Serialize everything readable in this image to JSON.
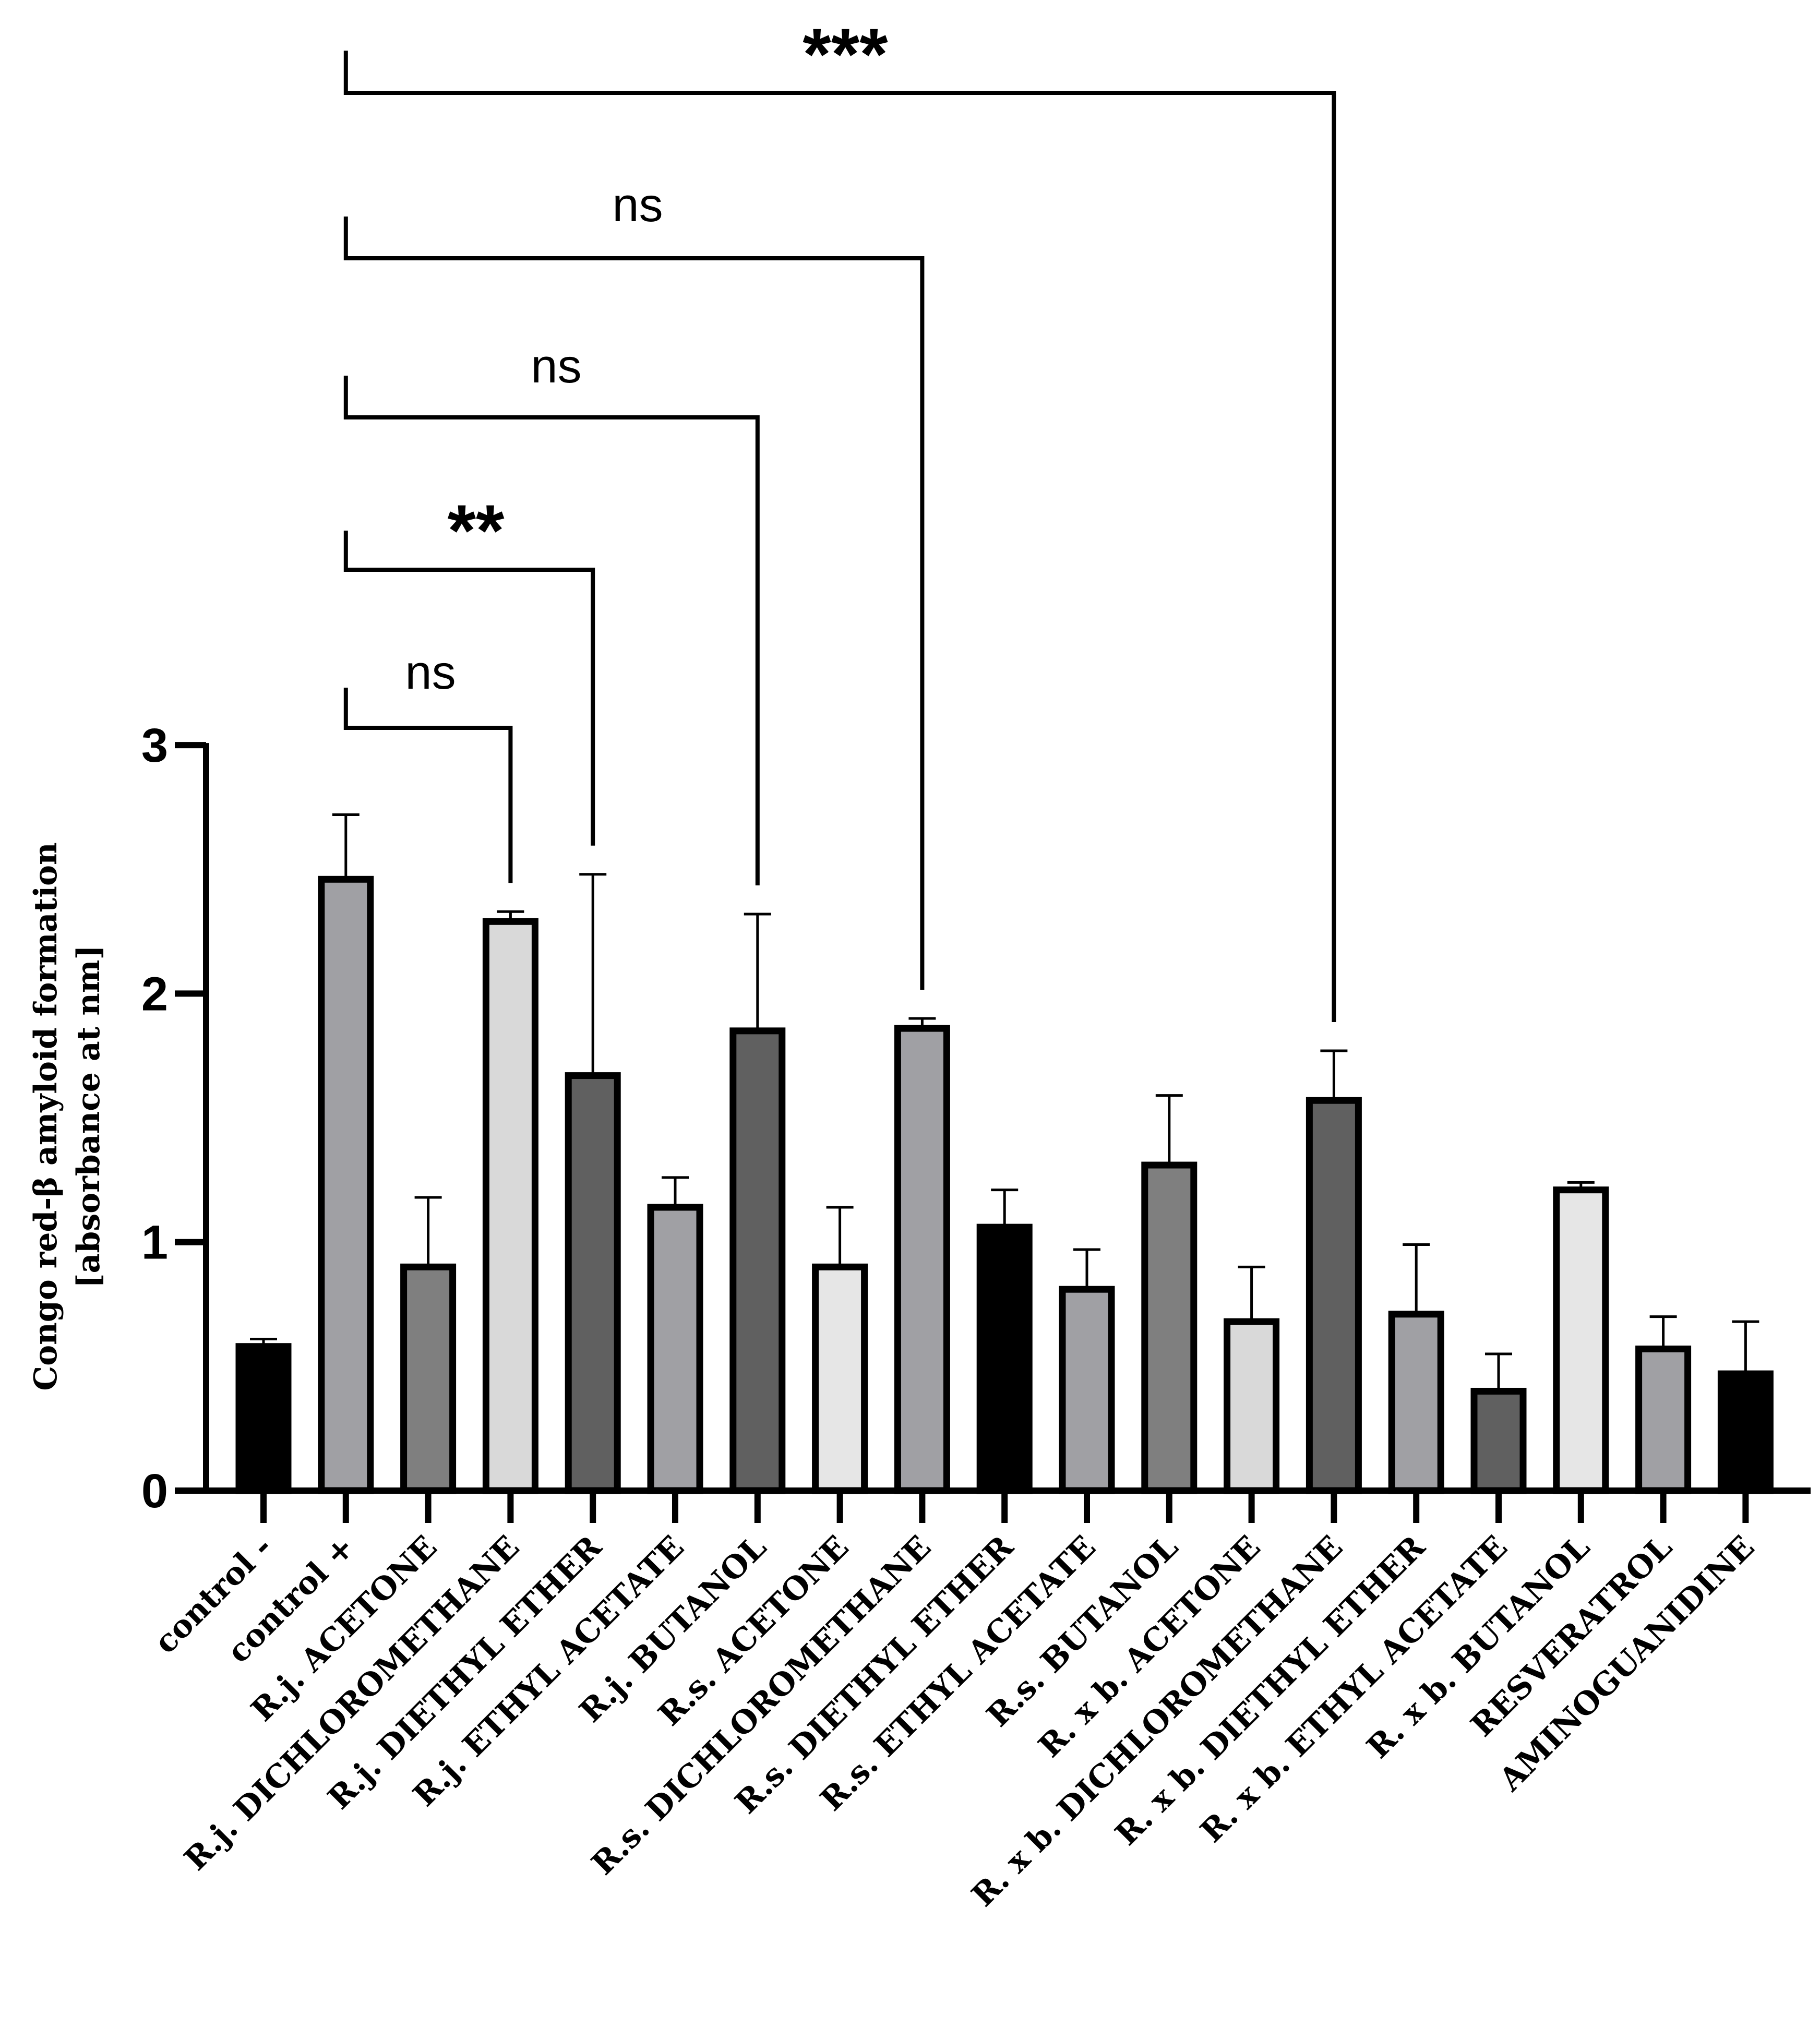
{
  "chart_data": {
    "type": "bar",
    "title": "",
    "xlabel": "",
    "ylabel_lines": [
      "Congo red-β amyloid formation",
      "[absorbance at nm]"
    ],
    "ylim": [
      0,
      3
    ],
    "yticks": [
      0,
      1,
      2,
      3
    ],
    "categories": [
      "control -",
      "control +",
      "R.j. ACETONE",
      "R.j. DICHLOROMETHANE",
      "R.j. DIETHYL ETHER",
      "R.j. ETHYL ACETATE",
      "R.j. BUTANOL",
      "R.s. ACETONE",
      "R.s. DICHLOROMETHANE",
      "R.s. DIETHYL ETHER",
      "R.s. ETHYL ACETATE",
      "R.s. BUTANOL",
      "R. x b. ACETONE",
      "R. x b. DICHLOROMETHANE",
      "R. x b.  DIETHYL ETHER",
      "R. x b.  ETHYL ACETATE",
      "R. x b. BUTANOL",
      "RESVERATROL",
      "AMINOGUANIDINE"
    ],
    "values": [
      0.58,
      2.46,
      0.9,
      2.29,
      1.67,
      1.14,
      1.85,
      0.9,
      1.86,
      1.06,
      0.81,
      1.31,
      0.68,
      1.57,
      0.71,
      0.4,
      1.21,
      0.57,
      0.47
    ],
    "errors": [
      0.03,
      0.26,
      0.28,
      0.04,
      0.81,
      0.12,
      0.47,
      0.24,
      0.04,
      0.15,
      0.16,
      0.28,
      0.22,
      0.2,
      0.28,
      0.15,
      0.03,
      0.13,
      0.21
    ],
    "bar_colors": [
      "#000000",
      "#a0a0a4",
      "#7f7f7f",
      "#d9d9d9",
      "#606060",
      "#a0a0a4",
      "#606060",
      "#e6e6e6",
      "#a0a0a4",
      "#000000",
      "#a0a0a4",
      "#7f7f7f",
      "#d9d9d9",
      "#606060",
      "#a0a0a4",
      "#606060",
      "#e6e6e6",
      "#a0a0a4",
      "#000000"
    ],
    "significance": [
      {
        "from": 1,
        "to": 3,
        "label": "ns"
      },
      {
        "from": 1,
        "to": 4,
        "label": "**"
      },
      {
        "from": 1,
        "to": 6,
        "label": "ns"
      },
      {
        "from": 1,
        "to": 8,
        "label": "ns"
      },
      {
        "from": 1,
        "to": 13,
        "label": "***"
      }
    ]
  }
}
